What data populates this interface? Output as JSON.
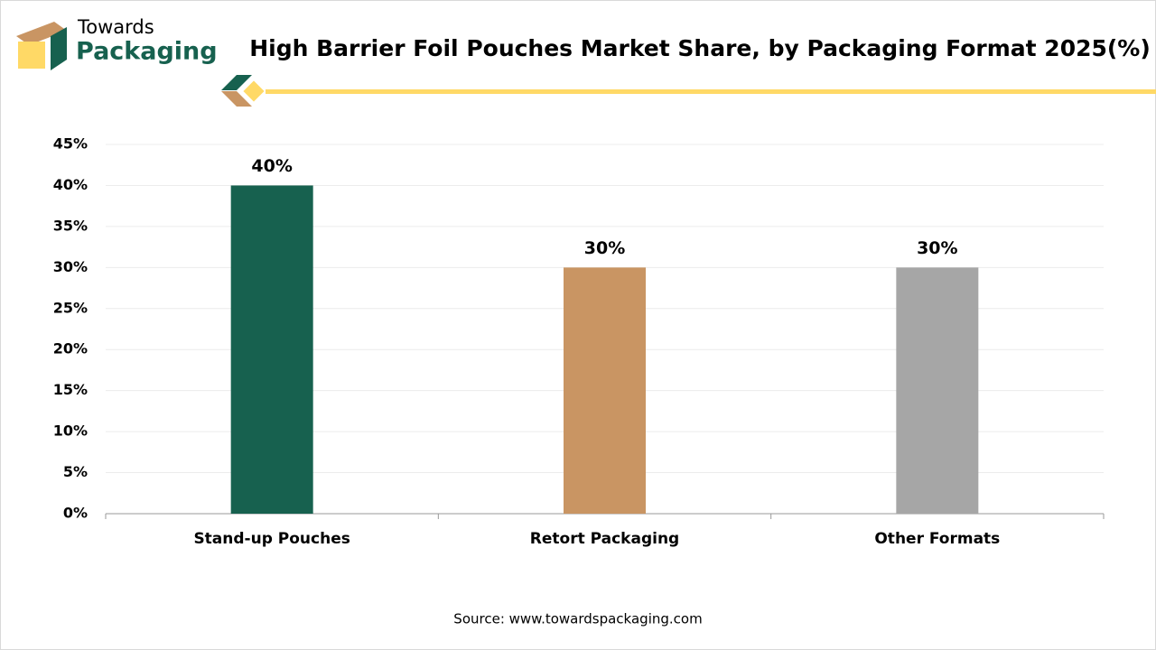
{
  "logo": {
    "line1": "Towards",
    "line2": "Packaging"
  },
  "chart_data": {
    "type": "bar",
    "title": "High Barrier Foil Pouches Market Share, by Packaging Format 2025(%)",
    "categories": [
      "Stand-up Pouches",
      "Retort Packaging",
      "Other Formats"
    ],
    "values": [
      40,
      30,
      30
    ],
    "value_labels": [
      "40%",
      "30%",
      "30%"
    ],
    "colors": [
      "#17614f",
      "#c99563",
      "#a6a6a6"
    ],
    "ylim": [
      0,
      45
    ],
    "yticks": [
      {
        "value": 0,
        "label": "0%"
      },
      {
        "value": 5,
        "label": "5%"
      },
      {
        "value": 10,
        "label": "10%"
      },
      {
        "value": 15,
        "label": "15%"
      },
      {
        "value": 20,
        "label": "20%"
      },
      {
        "value": 25,
        "label": "25%"
      },
      {
        "value": 30,
        "label": "30%"
      },
      {
        "value": 35,
        "label": "35%"
      },
      {
        "value": 40,
        "label": "40%"
      },
      {
        "value": 45,
        "label": "45%"
      }
    ],
    "grid": true,
    "source": "Source: www.towardspackaging.com"
  }
}
